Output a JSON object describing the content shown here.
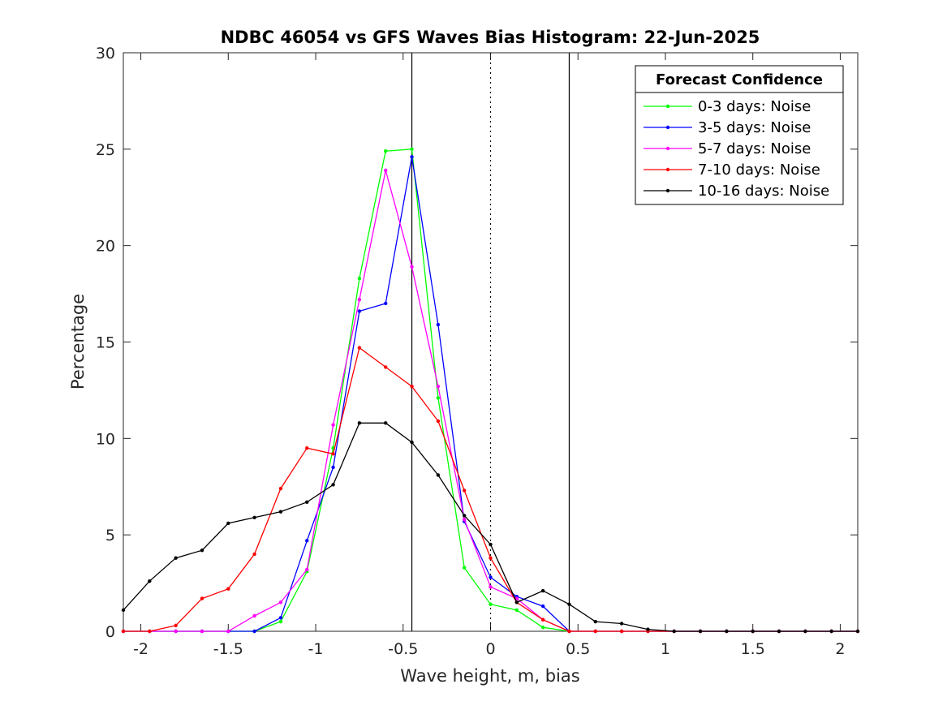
{
  "chart_data": {
    "type": "line",
    "title": "NDBC 46054 vs GFS Waves Bias Histogram: 22-Jun-2025",
    "xlabel": "Wave height, m, bias",
    "ylabel": "Percentage",
    "xlim": [
      -2.1,
      2.1
    ],
    "ylim": [
      0,
      30
    ],
    "xticks": [
      -2,
      -1.5,
      -1,
      -0.5,
      0,
      0.5,
      1,
      1.5,
      2
    ],
    "xtick_labels": [
      "-2",
      "-1.5",
      "-1",
      "-0.5",
      "0",
      "0.5",
      "1",
      "1.5",
      "2"
    ],
    "yticks": [
      0,
      5,
      10,
      15,
      20,
      25,
      30
    ],
    "ytick_labels": [
      "0",
      "5",
      "10",
      "15",
      "20",
      "25",
      "30"
    ],
    "grid": false,
    "legend_title": "Forecast Confidence",
    "legend_position": "top-right",
    "reference_lines": [
      {
        "x": -0.45,
        "style": "solid"
      },
      {
        "x": 0,
        "style": "dotted"
      },
      {
        "x": 0.45,
        "style": "solid"
      }
    ],
    "x": [
      -2.1,
      -1.95,
      -1.8,
      -1.65,
      -1.5,
      -1.35,
      -1.2,
      -1.05,
      -0.9,
      -0.75,
      -0.6,
      -0.45,
      -0.3,
      -0.15,
      0,
      0.15,
      0.3,
      0.45,
      0.6,
      0.75,
      0.9,
      1.05,
      1.2,
      1.35,
      1.5,
      1.65,
      1.8,
      1.95,
      2.1
    ],
    "series": [
      {
        "name": "0-3 days: Noise",
        "color": "#00ff00",
        "values": [
          0,
          0,
          0,
          0,
          0,
          0,
          0.5,
          3.1,
          9.5,
          18.3,
          24.9,
          25.0,
          12.1,
          3.3,
          1.4,
          1.1,
          0.2,
          0,
          0,
          0,
          0,
          0,
          0,
          0,
          0,
          0,
          0,
          0,
          0
        ]
      },
      {
        "name": "3-5 days: Noise",
        "color": "#0000ff",
        "values": [
          0,
          0,
          0,
          0,
          0,
          0,
          0.7,
          4.7,
          8.5,
          16.6,
          17.0,
          24.6,
          15.9,
          5.7,
          2.8,
          1.8,
          1.3,
          0,
          0,
          0,
          0,
          0,
          0,
          0,
          0,
          0,
          0,
          0,
          0
        ]
      },
      {
        "name": "5-7 days: Noise",
        "color": "#ff00ff",
        "values": [
          0,
          0,
          0,
          0,
          0,
          0.8,
          1.5,
          3.2,
          10.7,
          17.2,
          23.9,
          18.9,
          12.7,
          5.8,
          2.3,
          1.7,
          0.6,
          0,
          0,
          0,
          0,
          0,
          0,
          0,
          0,
          0,
          0,
          0,
          0
        ]
      },
      {
        "name": "7-10 days: Noise",
        "color": "#ff0000",
        "values": [
          0,
          0,
          0.3,
          1.7,
          2.2,
          4.0,
          7.4,
          9.5,
          9.2,
          14.7,
          13.7,
          12.7,
          10.9,
          7.3,
          3.8,
          1.5,
          0.6,
          0,
          0,
          0,
          0,
          0,
          0,
          0,
          0,
          0,
          0,
          0,
          0
        ]
      },
      {
        "name": "10-16 days: Noise",
        "color": "#000000",
        "values": [
          1.1,
          2.6,
          3.8,
          4.2,
          5.6,
          5.9,
          6.2,
          6.7,
          7.6,
          10.8,
          10.8,
          9.8,
          8.1,
          6.0,
          4.5,
          1.5,
          2.1,
          1.4,
          0.5,
          0.4,
          0.1,
          0,
          0,
          0,
          0,
          0,
          0,
          0,
          0
        ]
      }
    ]
  }
}
